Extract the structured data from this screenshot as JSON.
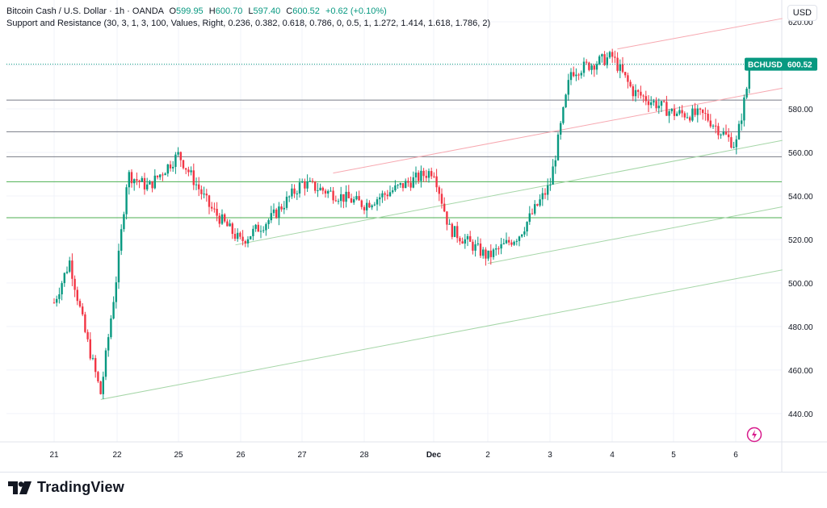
{
  "header": {
    "symbol": "Bitcoin Cash / U.S. Dollar · 1h · OANDA",
    "o_label": "O",
    "o_value": "599.95",
    "h_label": "H",
    "h_value": "600.70",
    "l_label": "L",
    "l_value": "597.40",
    "c_label": "C",
    "c_value": "600.52",
    "change": "+0.62 (+0.10%)",
    "indicator": "Support and Resistance (30, 3, 1, 3, 100, Values, Right, 0.236, 0.382, 0.618, 0.786, 0, 0.5, 1, 1.272, 1.414, 1.618, 1.786, 2)"
  },
  "currency_button": "USD",
  "price_tag": {
    "symbol": "BCHUSD",
    "price": "600.52",
    "value": 600.52
  },
  "branding": {
    "name": "TradingView"
  },
  "colors": {
    "up": "#089981",
    "down": "#f23645",
    "support": "#4caf50",
    "resistance": "#787b86",
    "channel_red": "#f7a8b0",
    "channel_green": "#a5d6a7"
  },
  "chart_data": {
    "type": "candlestick",
    "title": "Bitcoin Cash / U.S. Dollar · 1h · OANDA",
    "ylim": [
      427,
      630
    ],
    "y_ticks": [
      440,
      460,
      480,
      500,
      520,
      540,
      560,
      580,
      600,
      620
    ],
    "x_ticks": [
      "21",
      "22",
      "25",
      "26",
      "27",
      "28",
      "Dec",
      "2",
      "3",
      "4",
      "5",
      "6"
    ],
    "horizontal_levels": [
      {
        "price": 584,
        "kind": "resistance"
      },
      {
        "price": 569.5,
        "kind": "resistance"
      },
      {
        "price": 558,
        "kind": "resistance"
      },
      {
        "price": 546.5,
        "kind": "support"
      },
      {
        "price": 530,
        "kind": "support"
      }
    ],
    "trend_lines": [
      {
        "from": [
          "21 18:00",
          446.5
        ],
        "to": [
          "6 18:00",
          506
        ],
        "color": "green"
      },
      {
        "from": [
          "25 22:00",
          517.5
        ],
        "to": [
          "6 18:00",
          565.5
        ],
        "color": "green"
      },
      {
        "from": [
          "2 00:00",
          509
        ],
        "to": [
          "6 18:00",
          535
        ],
        "color": "green"
      },
      {
        "from": [
          "27 12:00",
          550.5
        ],
        "to": [
          "6 18:00",
          589.5
        ],
        "color": "red"
      },
      {
        "from": [
          "4 02:00",
          607.5
        ],
        "to": [
          "6 18:00",
          621.5
        ],
        "color": "red"
      }
    ],
    "key_points": [
      {
        "t": "21 00:00",
        "price": 491
      },
      {
        "t": "21 06:00",
        "price": 510
      },
      {
        "t": "21 12:00",
        "price": 477
      },
      {
        "t": "21 18:00",
        "price": 449
      },
      {
        "t": "22 00:00",
        "price": 505
      },
      {
        "t": "22 04:00",
        "price": 550
      },
      {
        "t": "22 12:00",
        "price": 544
      },
      {
        "t": "25 00:00",
        "price": 559
      },
      {
        "t": "25 12:00",
        "price": 535
      },
      {
        "t": "26 00:00",
        "price": 519
      },
      {
        "t": "26 12:00",
        "price": 530
      },
      {
        "t": "27 00:00",
        "price": 546
      },
      {
        "t": "28 00:00",
        "price": 536
      },
      {
        "t": "Dec 00:00",
        "price": 552
      },
      {
        "t": "1 06:00",
        "price": 525
      },
      {
        "t": "2 00:00",
        "price": 512
      },
      {
        "t": "2 12:00",
        "price": 522
      },
      {
        "t": "3 00:00",
        "price": 545
      },
      {
        "t": "3 08:00",
        "price": 597
      },
      {
        "t": "4 00:00",
        "price": 604
      },
      {
        "t": "4 08:00",
        "price": 588
      },
      {
        "t": "5 00:00",
        "price": 578
      },
      {
        "t": "5 12:00",
        "price": 577
      },
      {
        "t": "6 00:00",
        "price": 563
      },
      {
        "t": "6 06:00",
        "price": 600.52
      }
    ]
  }
}
